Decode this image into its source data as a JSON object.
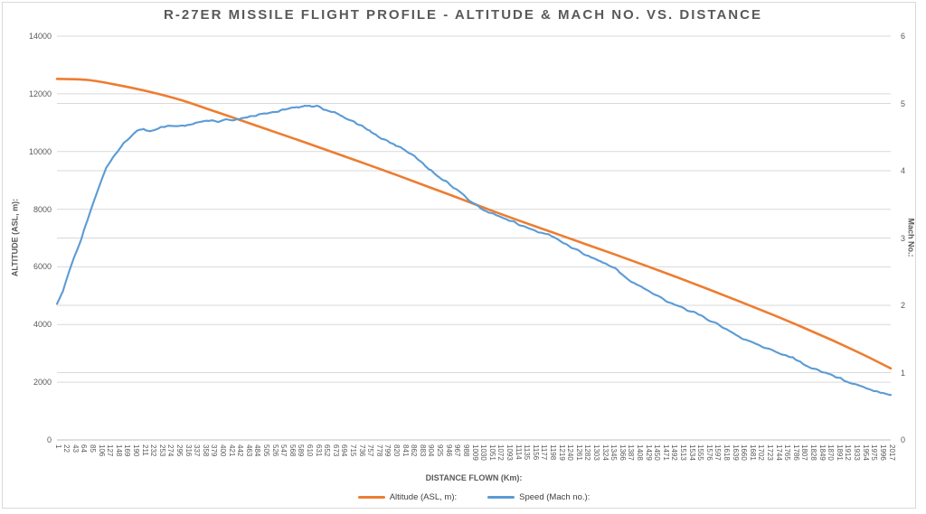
{
  "window": {
    "background": "#ffffff",
    "frame_border_color": "#d9d9d9"
  },
  "colors": {
    "altitude_series": "#ED7D31",
    "speed_series": "#5B9BD5",
    "gridline": "#D9D9D9",
    "axis_line": "#BFBFBF",
    "text": "#595959"
  },
  "chart_data": {
    "type": "line",
    "title": "R-27ER MISSILE FLIGHT PROFILE - ALTITUDE & MACH NO. VS. DISTANCE",
    "xlabel": "DISTANCE FLOWN (Km):",
    "ylabel_left": "ALTITUDE (ASL, m):",
    "ylabel_right": "Mach No.:",
    "grid": true,
    "legend_position": "bottom",
    "x_range": [
      1,
      2017
    ],
    "x_tick_labels": [
      1,
      22,
      43,
      64,
      85,
      106,
      127,
      148,
      169,
      190,
      211,
      232,
      253,
      274,
      295,
      316,
      337,
      358,
      379,
      400,
      421,
      442,
      463,
      484,
      505,
      526,
      547,
      568,
      589,
      610,
      631,
      652,
      673,
      694,
      715,
      736,
      757,
      778,
      799,
      820,
      841,
      862,
      883,
      904,
      925,
      946,
      967,
      988,
      1009,
      1030,
      1051,
      1072,
      1093,
      1114,
      1135,
      1156,
      1177,
      1198,
      1219,
      1240,
      1261,
      1282,
      1303,
      1324,
      1345,
      1366,
      1387,
      1408,
      1429,
      1450,
      1471,
      1492,
      1513,
      1534,
      1555,
      1576,
      1597,
      1618,
      1639,
      1660,
      1681,
      1702,
      1723,
      1744,
      1765,
      1786,
      1807,
      1828,
      1849,
      1870,
      1891,
      1912,
      1933,
      1954,
      1975,
      1996,
      2017
    ],
    "y_left": {
      "min": 0,
      "max": 14000,
      "ticks": [
        0,
        2000,
        4000,
        6000,
        8000,
        10000,
        12000,
        14000
      ]
    },
    "y_right": {
      "min": 0,
      "max": 6,
      "ticks": [
        0,
        1,
        2,
        3,
        4,
        5,
        6
      ]
    },
    "series": [
      {
        "name": "Altitude (ASL, m):",
        "color": "#ED7D31",
        "axis": "left",
        "style": "smooth",
        "points": [
          [
            1,
            12520
          ],
          [
            75,
            12480
          ],
          [
            150,
            12300
          ],
          [
            225,
            12070
          ],
          [
            300,
            11790
          ],
          [
            375,
            11430
          ],
          [
            450,
            11060
          ],
          [
            525,
            10690
          ],
          [
            600,
            10320
          ],
          [
            675,
            9940
          ],
          [
            750,
            9560
          ],
          [
            825,
            9170
          ],
          [
            900,
            8770
          ],
          [
            975,
            8370
          ],
          [
            1050,
            7960
          ],
          [
            1125,
            7570
          ],
          [
            1200,
            7190
          ],
          [
            1275,
            6810
          ],
          [
            1350,
            6430
          ],
          [
            1425,
            6040
          ],
          [
            1500,
            5640
          ],
          [
            1575,
            5230
          ],
          [
            1650,
            4810
          ],
          [
            1725,
            4380
          ],
          [
            1800,
            3930
          ],
          [
            1875,
            3460
          ],
          [
            1950,
            2960
          ],
          [
            2017,
            2480
          ]
        ]
      },
      {
        "name": "Speed (Mach no.):",
        "color": "#5B9BD5",
        "axis": "right",
        "style": "jagged",
        "points": [
          [
            1,
            2.02
          ],
          [
            15,
            2.2
          ],
          [
            30,
            2.5
          ],
          [
            45,
            2.75
          ],
          [
            60,
            3.0
          ],
          [
            75,
            3.28
          ],
          [
            90,
            3.55
          ],
          [
            105,
            3.8
          ],
          [
            120,
            4.05
          ],
          [
            135,
            4.18
          ],
          [
            150,
            4.3
          ],
          [
            165,
            4.42
          ],
          [
            180,
            4.52
          ],
          [
            195,
            4.59
          ],
          [
            210,
            4.63
          ],
          [
            225,
            4.59
          ],
          [
            240,
            4.62
          ],
          [
            255,
            4.65
          ],
          [
            270,
            4.67
          ],
          [
            290,
            4.65
          ],
          [
            310,
            4.67
          ],
          [
            330,
            4.7
          ],
          [
            350,
            4.72
          ],
          [
            370,
            4.74
          ],
          [
            390,
            4.72
          ],
          [
            410,
            4.76
          ],
          [
            430,
            4.74
          ],
          [
            450,
            4.78
          ],
          [
            470,
            4.8
          ],
          [
            490,
            4.83
          ],
          [
            510,
            4.85
          ],
          [
            530,
            4.88
          ],
          [
            550,
            4.91
          ],
          [
            570,
            4.95
          ],
          [
            585,
            4.93
          ],
          [
            600,
            4.97
          ],
          [
            615,
            4.95
          ],
          [
            630,
            4.97
          ],
          [
            645,
            4.92
          ],
          [
            660,
            4.88
          ],
          [
            680,
            4.84
          ],
          [
            700,
            4.78
          ],
          [
            720,
            4.73
          ],
          [
            740,
            4.65
          ],
          [
            760,
            4.58
          ],
          [
            780,
            4.5
          ],
          [
            800,
            4.44
          ],
          [
            820,
            4.38
          ],
          [
            840,
            4.32
          ],
          [
            860,
            4.24
          ],
          [
            880,
            4.15
          ],
          [
            900,
            4.02
          ],
          [
            920,
            3.93
          ],
          [
            940,
            3.85
          ],
          [
            960,
            3.75
          ],
          [
            980,
            3.66
          ],
          [
            1000,
            3.55
          ],
          [
            1020,
            3.47
          ],
          [
            1045,
            3.38
          ],
          [
            1070,
            3.33
          ],
          [
            1100,
            3.25
          ],
          [
            1130,
            3.17
          ],
          [
            1160,
            3.1
          ],
          [
            1190,
            3.05
          ],
          [
            1220,
            2.95
          ],
          [
            1250,
            2.85
          ],
          [
            1280,
            2.75
          ],
          [
            1310,
            2.67
          ],
          [
            1350,
            2.55
          ],
          [
            1390,
            2.35
          ],
          [
            1430,
            2.22
          ],
          [
            1470,
            2.08
          ],
          [
            1500,
            2.0
          ],
          [
            1540,
            1.9
          ],
          [
            1580,
            1.78
          ],
          [
            1620,
            1.64
          ],
          [
            1660,
            1.5
          ],
          [
            1700,
            1.4
          ],
          [
            1740,
            1.31
          ],
          [
            1780,
            1.22
          ],
          [
            1820,
            1.08
          ],
          [
            1860,
            1.0
          ],
          [
            1900,
            0.9
          ],
          [
            1940,
            0.81
          ],
          [
            1980,
            0.73
          ],
          [
            2017,
            0.67
          ]
        ]
      }
    ]
  },
  "legend": {
    "items": [
      {
        "label": "Altitude (ASL, m):",
        "color": "#ED7D31"
      },
      {
        "label": "Speed (Mach no.):",
        "color": "#5B9BD5"
      }
    ]
  }
}
